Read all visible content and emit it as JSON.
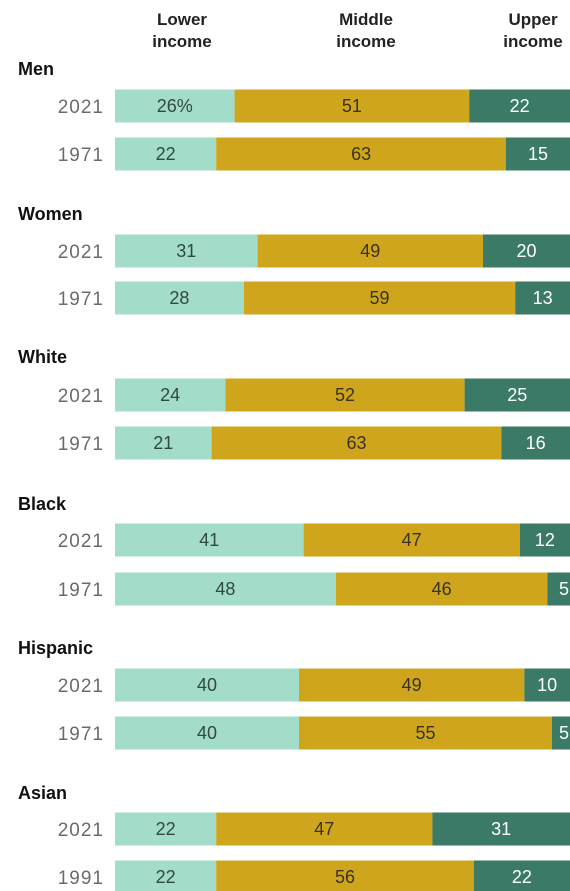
{
  "header": {
    "lower": [
      "Lower",
      "income"
    ],
    "middle": [
      "Middle",
      "income"
    ],
    "upper": [
      "Upper",
      "income"
    ]
  },
  "colors": {
    "lower": "#a3dcc8",
    "middle": "#cfa51e",
    "upper": "#3a7a66",
    "lower_text": "#2f4a40",
    "middle_text": "#3a3320",
    "upper_text": "#ffffff"
  },
  "chart_data": {
    "type": "bar",
    "stacked": true,
    "orientation": "horizontal",
    "series_order": [
      "lower",
      "middle",
      "upper"
    ],
    "groups": [
      {
        "name": "Men",
        "rows": [
          {
            "year": "2021",
            "values": [
              26,
              51,
              22
            ],
            "labels": [
              "26%",
              "51",
              "22"
            ]
          },
          {
            "year": "1971",
            "values": [
              22,
              63,
              15
            ],
            "labels": [
              "22",
              "63",
              "15"
            ]
          }
        ]
      },
      {
        "name": "Women",
        "rows": [
          {
            "year": "2021",
            "values": [
              31,
              49,
              20
            ],
            "labels": [
              "31",
              "49",
              "20"
            ]
          },
          {
            "year": "1971",
            "values": [
              28,
              59,
              13
            ],
            "labels": [
              "28",
              "59",
              "13"
            ]
          }
        ]
      },
      {
        "name": "White",
        "rows": [
          {
            "year": "2021",
            "values": [
              24,
              52,
              25
            ],
            "labels": [
              "24",
              "52",
              "25"
            ]
          },
          {
            "year": "1971",
            "values": [
              21,
              63,
              16
            ],
            "labels": [
              "21",
              "63",
              "16"
            ]
          }
        ]
      },
      {
        "name": "Black",
        "rows": [
          {
            "year": "2021",
            "values": [
              41,
              47,
              12
            ],
            "labels": [
              "41",
              "47",
              "12"
            ]
          },
          {
            "year": "1971",
            "values": [
              48,
              46,
              5
            ],
            "labels": [
              "48",
              "46",
              "5"
            ]
          }
        ]
      },
      {
        "name": "Hispanic",
        "rows": [
          {
            "year": "2021",
            "values": [
              40,
              49,
              10
            ],
            "labels": [
              "40",
              "49",
              "10"
            ]
          },
          {
            "year": "1971",
            "values": [
              40,
              55,
              5
            ],
            "labels": [
              "40",
              "55",
              "5"
            ]
          }
        ]
      },
      {
        "name": "Asian",
        "rows": [
          {
            "year": "2021",
            "values": [
              22,
              47,
              31
            ],
            "labels": [
              "22",
              "47",
              "31"
            ]
          },
          {
            "year": "1991",
            "values": [
              22,
              56,
              22
            ],
            "labels": [
              "22",
              "56",
              "22"
            ]
          }
        ]
      }
    ]
  }
}
